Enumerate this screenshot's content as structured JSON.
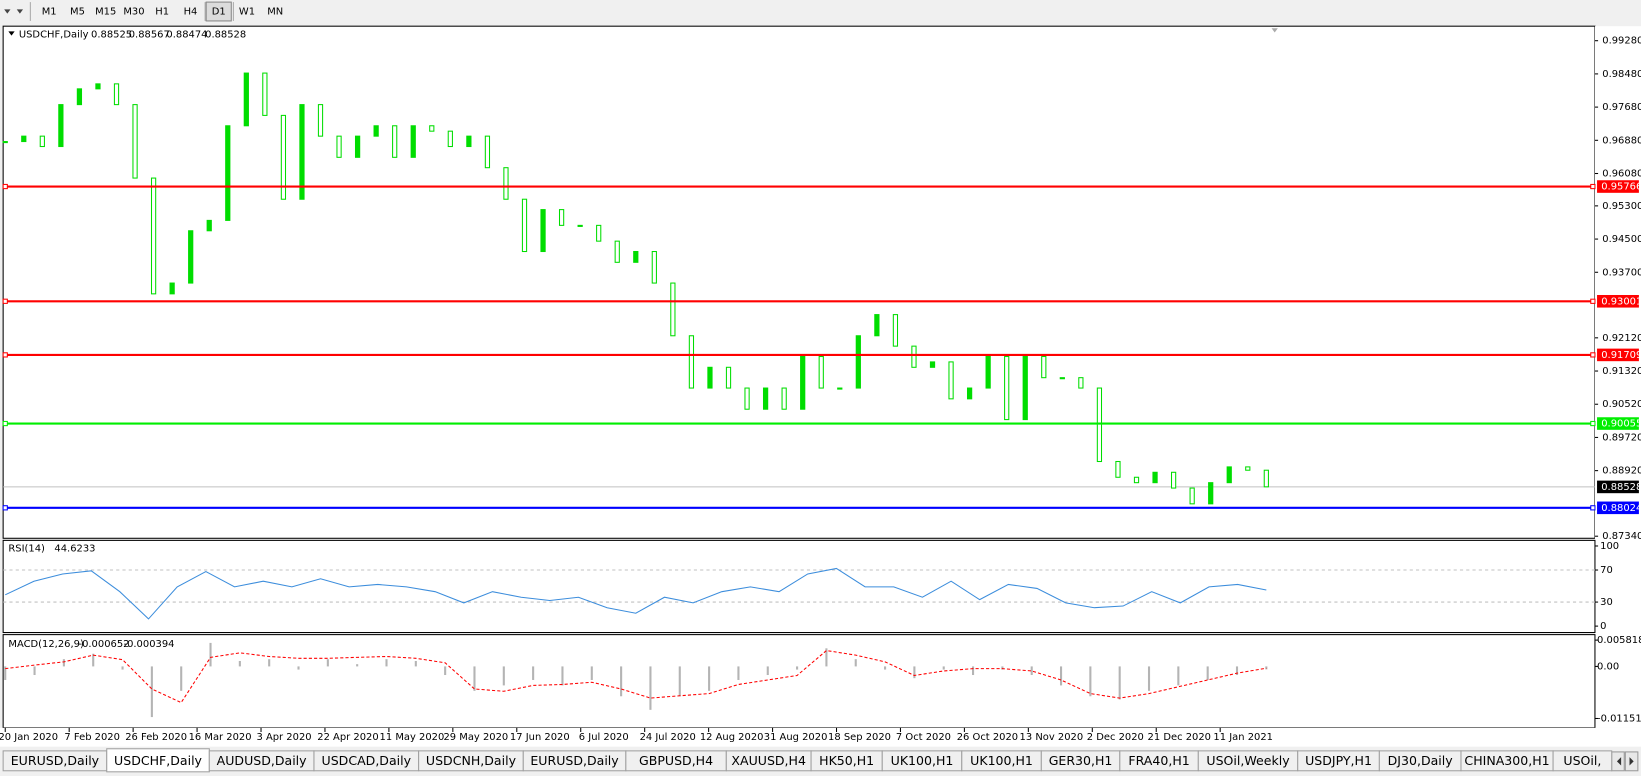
{
  "toolbar": {
    "timeframes": [
      "M1",
      "M5",
      "M15",
      "M30",
      "H1",
      "H4",
      "D1",
      "W1",
      "MN"
    ],
    "active": "D1"
  },
  "chart_data": [
    {
      "type": "candlestick",
      "title": "USDCHF,Daily",
      "ohlc": [
        0.88525,
        0.88567,
        0.88474,
        0.88528
      ],
      "color": "#00dd00",
      "values": [
        0.9685,
        0.9698,
        0.9673,
        0.9774,
        0.9812,
        0.9824,
        0.9774,
        0.9597,
        0.9318,
        0.9344,
        0.947,
        0.9495,
        0.9723,
        0.985,
        0.9748,
        0.9546,
        0.9774,
        0.9698,
        0.9647,
        0.9698,
        0.9723,
        0.9647,
        0.9723,
        0.971,
        0.9673,
        0.9698,
        0.9622,
        0.9546,
        0.942,
        0.9521,
        0.9483,
        0.9483,
        0.9445,
        0.9394,
        0.942,
        0.9344,
        0.9217,
        0.9091,
        0.9141,
        0.9091,
        0.904,
        0.9091,
        0.904,
        0.9167,
        0.9091,
        0.9091,
        0.9217,
        0.9268,
        0.9192,
        0.9141,
        0.9154,
        0.9065,
        0.9091,
        0.9167,
        0.9015,
        0.9167,
        0.9116,
        0.9116,
        0.9091,
        0.8914,
        0.8876,
        0.8863,
        0.8888,
        0.885,
        0.8812,
        0.8863,
        0.8901,
        0.8893,
        0.8853
      ],
      "ylim": [
        0.8729,
        0.9963
      ],
      "yticks": [
        {
          "value": 0.9928,
          "label": "0.99280"
        },
        {
          "value": 0.9848,
          "label": "0.98480"
        },
        {
          "value": 0.9768,
          "label": "0.97680"
        },
        {
          "value": 0.9688,
          "label": "0.96880"
        },
        {
          "value": 0.9608,
          "label": "0.96080"
        },
        {
          "value": 0.953,
          "label": "0.95300"
        },
        {
          "value": 0.945,
          "label": "0.94500"
        },
        {
          "value": 0.937,
          "label": "0.93700"
        },
        {
          "value": 0.9212,
          "label": "0.92120"
        },
        {
          "value": 0.9132,
          "label": "0.91320"
        },
        {
          "value": 0.9052,
          "label": "0.90520"
        },
        {
          "value": 0.8972,
          "label": "0.89720"
        },
        {
          "value": 0.8892,
          "label": "0.88920"
        },
        {
          "value": 0.8734,
          "label": "0.87340"
        }
      ],
      "levels": [
        {
          "value": 0.95766,
          "color": "#ff0000"
        },
        {
          "value": 0.93001,
          "color": "#ff0000"
        },
        {
          "value": 0.91709,
          "color": "#ff0000"
        },
        {
          "value": 0.90055,
          "color": "#00ee00"
        },
        {
          "value": 0.88024,
          "color": "#0000ff"
        }
      ],
      "current_price": 0.88528,
      "date_labels": [
        "20 Jan 2020",
        "7 Feb 2020",
        "26 Feb 2020",
        "16 Mar 2020",
        "3 Apr 2020",
        "22 Apr 2020",
        "11 May 2020",
        "29 May 2020",
        "17 Jun 2020",
        "6 Jul 2020",
        "24 Jul 2020",
        "12 Aug 2020",
        "31 Aug 2020",
        "18 Sep 2020",
        "7 Oct 2020",
        "26 Oct 2020",
        "13 Nov 2020",
        "2 Dec 2020",
        "21 Dec 2020",
        "11 Jan 2021"
      ]
    },
    {
      "type": "line",
      "title": "RSI(14)",
      "current": 44.6233,
      "color": "#3c8ddc",
      "values": [
        39,
        56,
        65,
        69,
        43,
        9,
        49,
        68,
        49,
        56,
        49,
        59,
        49,
        52,
        49,
        43,
        29,
        43,
        36,
        32,
        36,
        23,
        16,
        36,
        29,
        43,
        49,
        43,
        65,
        72,
        49,
        49,
        36,
        56,
        33,
        52,
        47,
        29,
        23,
        25,
        43,
        29,
        49,
        52,
        45
      ],
      "ylim": [
        -8,
        107
      ],
      "yticks": [
        0,
        30,
        70,
        100
      ],
      "levels": [
        30,
        70
      ]
    },
    {
      "type": "macd",
      "title": "MACD(12,26,9)",
      "current": [
        -0.000652,
        -0.000394
      ],
      "ylim": [
        -0.01358,
        0.00703
      ],
      "yticks": [
        0.005818,
        {
          "value": 0,
          "label": "0.00"
        },
        -0.011514
      ],
      "series": [
        {
          "color": "#b4b4b4",
          "values": [
            -0.003,
            -0.0019,
            0.0016,
            0.0028,
            -0.0007,
            -0.0112,
            -0.0054,
            0.0052,
            0.0012,
            0.0016,
            -0.0007,
            0.0016,
            0.0005,
            0.0016,
            0.0012,
            -0.0019,
            -0.0054,
            -0.0042,
            -0.003,
            -0.0042,
            -0.003,
            -0.0066,
            -0.0096,
            -0.0066,
            -0.0054,
            -0.003,
            -0.0019,
            -0.0007,
            0.004,
            0.0016,
            -0.0007,
            -0.0026,
            -0.0007,
            -0.0019,
            -0.0007,
            -0.0019,
            -0.0042,
            -0.0066,
            -0.0073,
            -0.0054,
            -0.0042,
            -0.003,
            -0.0019,
            -0.000652
          ]
        },
        {
          "color": "#ff0000",
          "values": [
            -0.0005,
            0.0003,
            0.001,
            0.0025,
            0.0015,
            -0.005,
            -0.008,
            0.002,
            0.003,
            0.0022,
            0.0018,
            0.0018,
            0.002,
            0.0022,
            0.0018,
            0.0008,
            -0.005,
            -0.0055,
            -0.0042,
            -0.004,
            -0.0035,
            -0.005,
            -0.007,
            -0.0065,
            -0.006,
            -0.004,
            -0.003,
            -0.002,
            0.0035,
            0.0025,
            0.001,
            -0.002,
            -0.001,
            -0.0005,
            -0.0005,
            -0.001,
            -0.003,
            -0.006,
            -0.007,
            -0.006,
            -0.0045,
            -0.003,
            -0.0015,
            -0.000394
          ]
        }
      ]
    }
  ],
  "tabs": [
    "EURUSD,Daily",
    "USDCHF,Daily",
    "AUDUSD,Daily",
    "USDCAD,Daily",
    "USDCNH,Daily",
    "EURUSD,Daily",
    "GBPUSD,H4",
    "XAUUSD,H4",
    "HK50,H1",
    "UK100,H1",
    "UK100,H1",
    "GER30,H1",
    "FRA40,H1",
    "USOil,Weekly",
    "USDJPY,H1",
    "DJ30,Daily",
    "CHINA300,H1",
    "USOil,"
  ],
  "active_tab": 1
}
